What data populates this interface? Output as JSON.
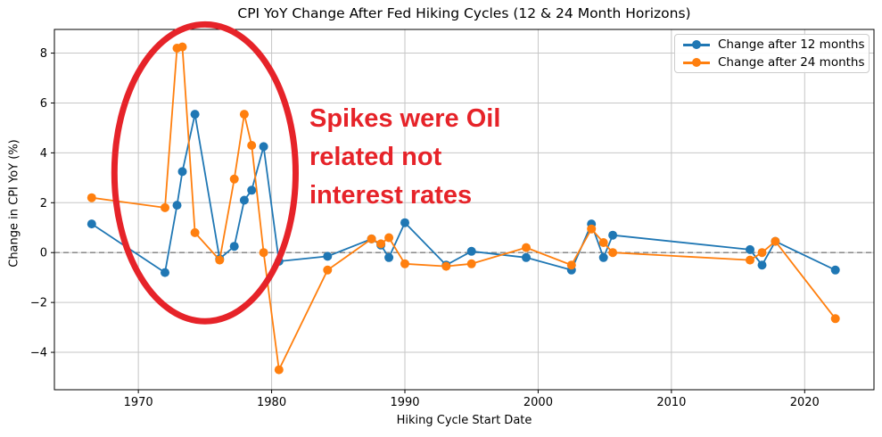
{
  "title": "CPI YoY Change After Fed Hiking Cycles (12 & 24 Month Horizons)",
  "chart_data": {
    "type": "line",
    "title": "CPI YoY Change After Fed Hiking Cycles (12 & 24 Month Horizons)",
    "xlabel": "Hiking Cycle Start Date",
    "ylabel": "Change in CPI YoY (%)",
    "xlim": [
      1963.7,
      2025.2
    ],
    "ylim": [
      -5.5,
      8.95
    ],
    "grid": true,
    "legend_position": "upper right",
    "x_ticks": [
      1970,
      1980,
      1990,
      2000,
      2010,
      2020
    ],
    "x_tick_labels": [
      "1970",
      "1980",
      "1990",
      "2000",
      "2010",
      "2020"
    ],
    "y_ticks": [
      -4,
      -2,
      0,
      2,
      4,
      6,
      8
    ],
    "y_tick_labels": [
      "−4",
      "−2",
      "0",
      "2",
      "4",
      "6",
      "8"
    ],
    "x": [
      1966.5,
      1972.0,
      1972.9,
      1973.3,
      1974.25,
      1976.1,
      1977.2,
      1977.95,
      1978.5,
      1979.4,
      1980.55,
      1984.2,
      1987.5,
      1988.2,
      1988.8,
      1990.0,
      1993.1,
      1995.0,
      1999.1,
      2002.5,
      2004.0,
      2004.9,
      2005.6,
      2015.9,
      2016.8,
      2017.8,
      2022.3
    ],
    "series": [
      {
        "name": "Change after 12 months",
        "color": "#1f77b4",
        "values": [
          1.15,
          -0.8,
          1.9,
          3.25,
          5.55,
          -0.25,
          0.25,
          2.1,
          2.5,
          4.25,
          -0.35,
          -0.15,
          0.55,
          0.3,
          -0.2,
          1.2,
          -0.5,
          0.05,
          -0.2,
          -0.7,
          1.15,
          -0.2,
          0.7,
          0.12,
          -0.5,
          0.45,
          -0.7
        ]
      },
      {
        "name": "Change after 24 months",
        "color": "#ff7f0e",
        "values": [
          2.2,
          1.8,
          8.2,
          8.25,
          0.8,
          -0.3,
          2.95,
          5.55,
          4.3,
          0.0,
          -4.7,
          -0.7,
          0.55,
          0.35,
          0.6,
          -0.45,
          -0.55,
          -0.45,
          0.2,
          -0.5,
          0.95,
          0.4,
          0.0,
          -0.3,
          0.0,
          0.45,
          -2.65
        ]
      }
    ],
    "zero_line": {
      "y": 0,
      "style": "dashed",
      "color": "#7f7f7f"
    },
    "annotations": {
      "ellipse": {
        "center": [
          1975.0,
          3.2
        ],
        "rx": 6.8,
        "ry": 5.95,
        "color": "#e62329",
        "stroke_width": 7
      },
      "text": {
        "lines": [
          "Spikes were Oil",
          "related not",
          "interest rates"
        ],
        "color": "#e62329"
      }
    },
    "colors": {
      "grid": "#c6c6c6",
      "spine": "#000000",
      "tick_text": "#000000"
    }
  }
}
